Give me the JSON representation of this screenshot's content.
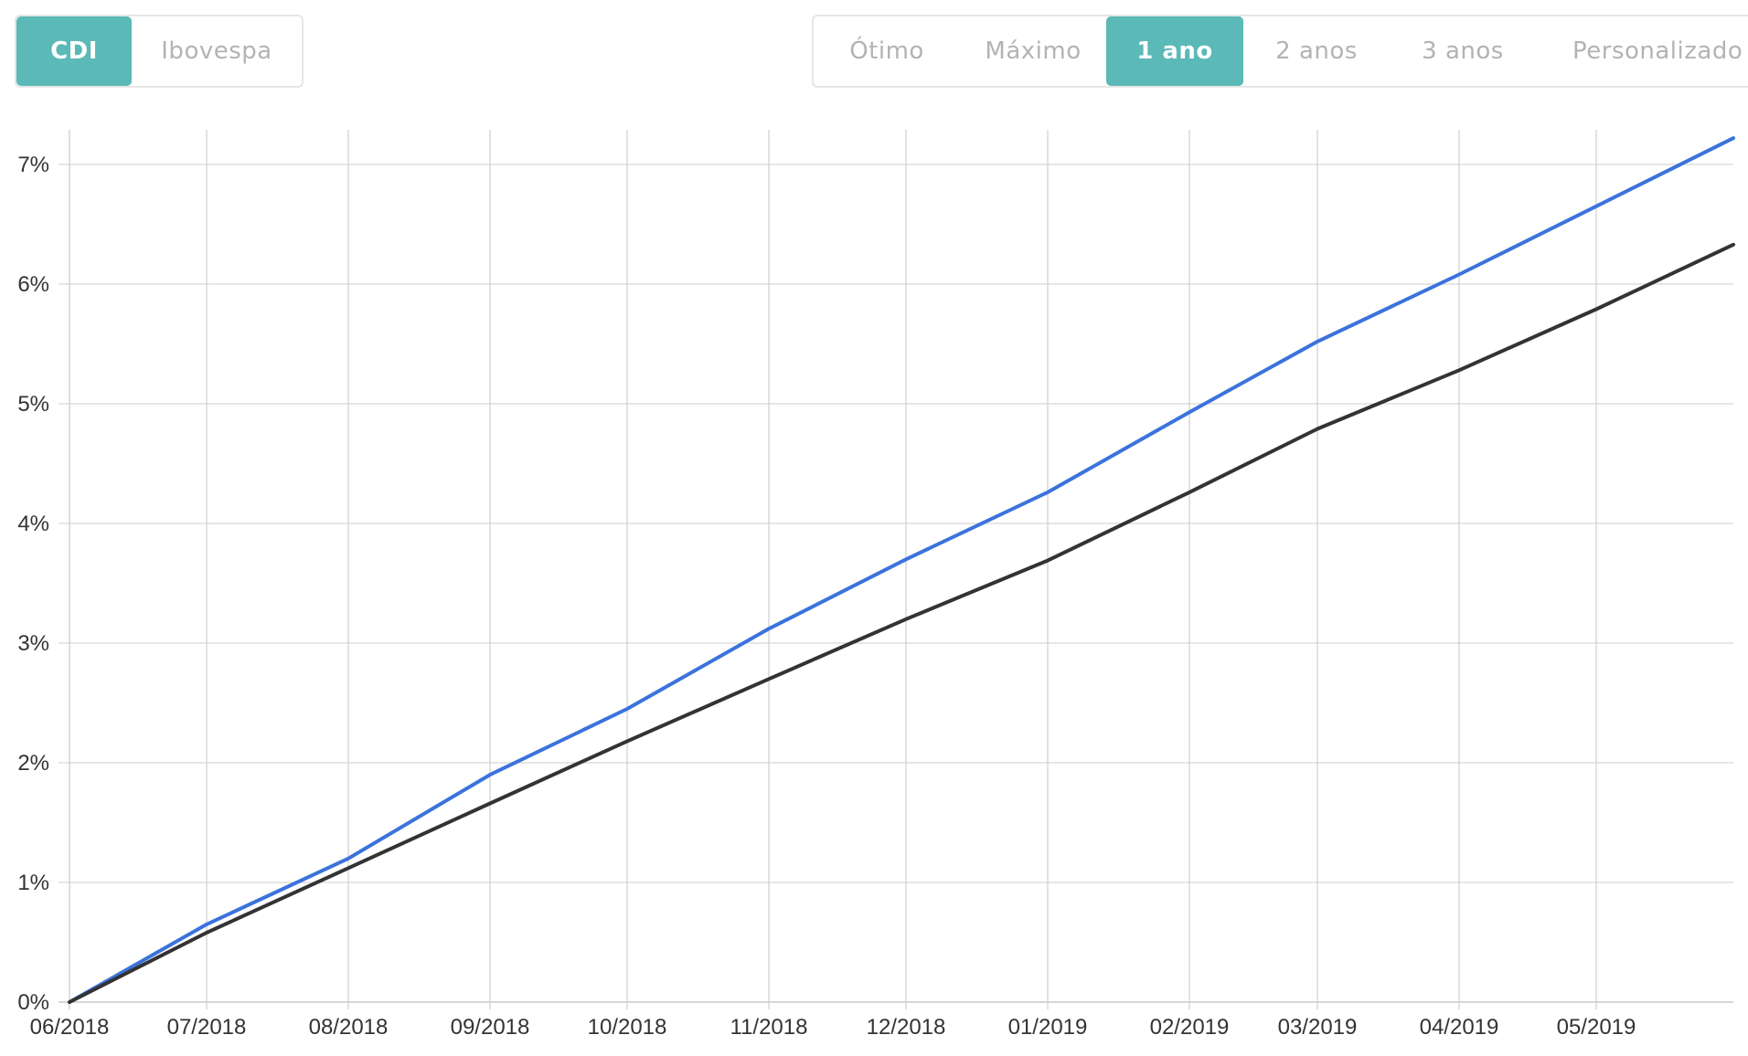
{
  "benchmark_tabs": [
    {
      "label": "CDI",
      "active": true
    },
    {
      "label": "Ibovespa",
      "active": false
    }
  ],
  "period_tabs": [
    {
      "label": "Ótimo",
      "active": false
    },
    {
      "label": "Máximo",
      "active": false
    },
    {
      "label": "1 ano",
      "active": true
    },
    {
      "label": "2 anos",
      "active": false
    },
    {
      "label": "3 anos",
      "active": false
    },
    {
      "label": "Personalizado",
      "active": false
    }
  ],
  "colors": {
    "accent": "#5bb9b7",
    "fund_line": "#3b73dc",
    "cdi_line": "#333333"
  },
  "chart_data": {
    "type": "line",
    "title": "",
    "xlabel": "",
    "ylabel": "",
    "x_ticks": [
      "06/2018",
      "07/2018",
      "08/2018",
      "09/2018",
      "10/2018",
      "11/2018",
      "12/2018",
      "01/2019",
      "02/2019",
      "03/2019",
      "04/2019",
      "05/2019"
    ],
    "y_ticks": [
      "0%",
      "1%",
      "2%",
      "3%",
      "4%",
      "5%",
      "6%",
      "7%"
    ],
    "ylim": [
      0,
      7.22
    ],
    "x": [
      "2018-06-01",
      "2018-07-01",
      "2018-08-01",
      "2018-09-01",
      "2018-10-01",
      "2018-11-01",
      "2018-12-01",
      "2019-01-01",
      "2019-02-01",
      "2019-03-01",
      "2019-04-01",
      "2019-05-01",
      "2019-05-31"
    ],
    "grid": true,
    "legend": "none",
    "series": [
      {
        "color": "#3b73dc",
        "values": [
          0.0,
          0.65,
          1.2,
          1.9,
          2.45,
          3.12,
          3.7,
          4.26,
          4.93,
          5.52,
          6.08,
          6.65,
          7.22
        ]
      },
      {
        "color": "#333333",
        "values": [
          0.0,
          0.58,
          1.12,
          1.66,
          2.18,
          2.7,
          3.2,
          3.69,
          4.26,
          4.79,
          5.28,
          5.79,
          6.33
        ]
      }
    ]
  }
}
